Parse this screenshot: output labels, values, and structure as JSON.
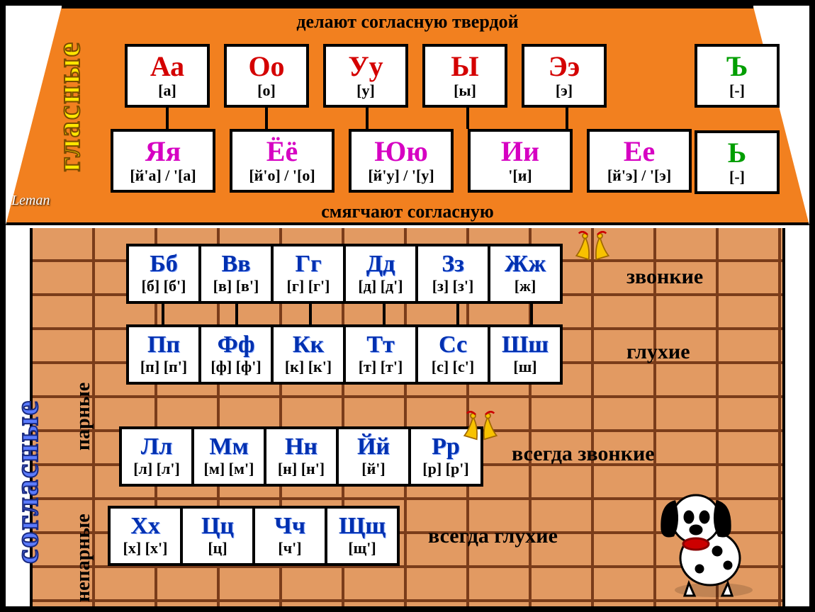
{
  "roof": {
    "top_caption": "делают согласную твердой",
    "bottom_caption": "смягчают согласную",
    "vowels_label": "гласные",
    "hard_vowels": [
      {
        "letter": "Аа",
        "phon": "[а]",
        "color": "c-red"
      },
      {
        "letter": "Оо",
        "phon": "[о]",
        "color": "c-red"
      },
      {
        "letter": "Уу",
        "phon": "[у]",
        "color": "c-red"
      },
      {
        "letter": "Ы",
        "phon": "[ы]",
        "color": "c-red"
      },
      {
        "letter": "Ээ",
        "phon": "[э]",
        "color": "c-red"
      }
    ],
    "soft_vowels": [
      {
        "letter": "Яя",
        "phon": "[й'а] / '[а]",
        "color": "c-magenta"
      },
      {
        "letter": "Ёё",
        "phon": "[й'о] / '[о]",
        "color": "c-magenta"
      },
      {
        "letter": "Юю",
        "phon": "[й'у] / '[у]",
        "color": "c-magenta"
      },
      {
        "letter": "Ии",
        "phon": "'[и]",
        "color": "c-magenta"
      },
      {
        "letter": "Ее",
        "phon": "[й'э] / '[э]",
        "color": "c-magenta"
      }
    ],
    "signs": [
      {
        "letter": "Ъ",
        "phon": "[-]",
        "color": "c-green"
      },
      {
        "letter": "Ь",
        "phon": "[-]",
        "color": "c-green"
      }
    ]
  },
  "wall": {
    "consonants_label": "согласные",
    "paired_label": "парные",
    "unpaired_label": "непарные",
    "row1": [
      {
        "letter": "Бб",
        "phon": "[б] [б']"
      },
      {
        "letter": "Вв",
        "phon": "[в] [в']"
      },
      {
        "letter": "Гг",
        "phon": "[г] [г']"
      },
      {
        "letter": "Дд",
        "phon": "[д] [д']"
      },
      {
        "letter": "Зз",
        "phon": "[з] [з']"
      },
      {
        "letter": "Жж",
        "phon": "[ж]"
      }
    ],
    "row2": [
      {
        "letter": "Пп",
        "phon": "[п] [п']"
      },
      {
        "letter": "Фф",
        "phon": "[ф] [ф']"
      },
      {
        "letter": "Кк",
        "phon": "[к] [к']"
      },
      {
        "letter": "Тт",
        "phon": "[т] [т']"
      },
      {
        "letter": "Сс",
        "phon": "[с] [с']"
      },
      {
        "letter": "Шш",
        "phon": "[ш]"
      }
    ],
    "row3": [
      {
        "letter": "Лл",
        "phon": "[л] [л']"
      },
      {
        "letter": "Мм",
        "phon": "[м] [м']"
      },
      {
        "letter": "Нн",
        "phon": "[н] [н']"
      },
      {
        "letter": "Йй",
        "phon": "[й']"
      },
      {
        "letter": "Рр",
        "phon": "[р] [р']"
      }
    ],
    "row4": [
      {
        "letter": "Хх",
        "phon": "[х] [х']"
      },
      {
        "letter": "Цц",
        "phon": "[ц]"
      },
      {
        "letter": "Чч",
        "phon": "[ч']"
      },
      {
        "letter": "Щщ",
        "phon": "[щ']"
      }
    ],
    "side_labels": {
      "voiced": "звонкие",
      "unvoiced": "глухие",
      "always_voiced": "всегда звонкие",
      "always_unvoiced": "всегда глухие"
    }
  },
  "brand": "Leman",
  "colors": {
    "roof": "#f2801f",
    "brick": "#e29a62",
    "mortar": "#7a3c1a",
    "red": "#d40000",
    "magenta": "#d600c2",
    "green": "#009e00",
    "blue": "#0030b0",
    "yellow": "#ffe600"
  }
}
